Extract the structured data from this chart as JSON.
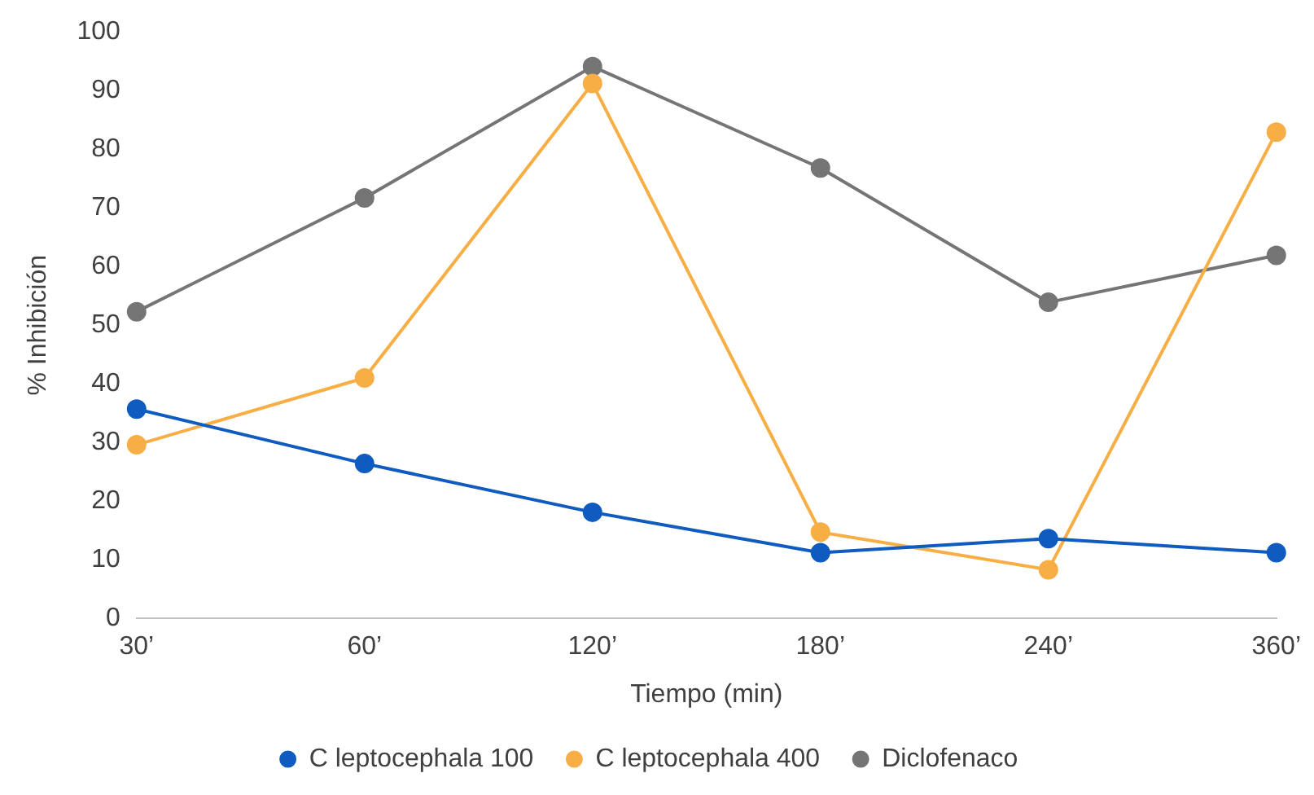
{
  "chart_data": {
    "type": "line",
    "xlabel": "Tiempo (min)",
    "ylabel": "% Inhibición",
    "categories": [
      "30’",
      "60’",
      "120’",
      "180’",
      "240’",
      "360’"
    ],
    "series": [
      {
        "name": "C leptocephala 100",
        "color": "#0f5bbf",
        "values": [
          35.7,
          26.4,
          18.1,
          11.2,
          13.6,
          11.2
        ]
      },
      {
        "name": "C leptocephala 400",
        "color": "#f7ae45",
        "values": [
          29.6,
          41,
          91.2,
          14.7,
          8.3,
          82.9
        ]
      },
      {
        "name": "Diclofenaco",
        "color": "#757575",
        "values": [
          52.3,
          71.7,
          94.1,
          76.8,
          53.9,
          61.9
        ]
      }
    ],
    "ylim": [
      0,
      100
    ],
    "yticks": [
      0,
      10,
      20,
      30,
      40,
      50,
      60,
      70,
      80,
      90,
      100
    ],
    "grid": false,
    "legend": "bottom",
    "marker": "circle",
    "line_style": "solid"
  }
}
